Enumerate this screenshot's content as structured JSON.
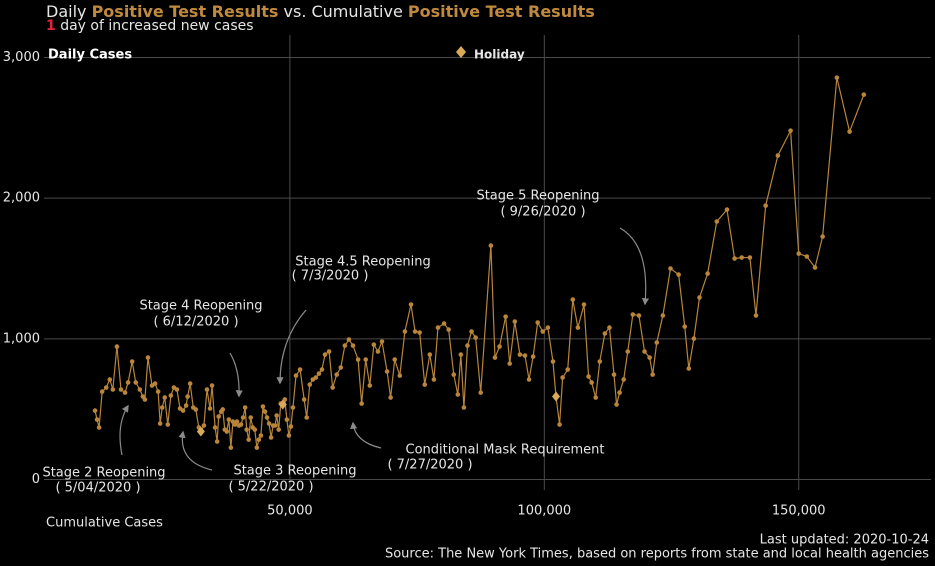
{
  "chart_data": {
    "type": "line",
    "title_parts": [
      "Daily",
      "Positive Test Results",
      "vs. Cumulative",
      "Positive Test Results"
    ],
    "subtitle": {
      "count": 1,
      "text": "day of increased new cases"
    },
    "y_label": "Daily Cases",
    "x_label": "Cumulative Cases",
    "xlim": [
      0,
      176000
    ],
    "ylim": [
      -110,
      3160
    ],
    "xticks": [
      {
        "value": 50000,
        "label": "50,000"
      },
      {
        "value": 100000,
        "label": "100,000"
      },
      {
        "value": 150000,
        "label": "150,000"
      }
    ],
    "yticks": [
      0,
      {
        "value": 1000,
        "label": "1,000"
      },
      {
        "value": 2000,
        "label": "2,000"
      },
      {
        "value": 3000,
        "label": "3,000"
      }
    ],
    "grid": true,
    "series": [
      {
        "color": "#b8853a",
        "x": [
          11700,
          12100,
          12500,
          13100,
          13900,
          14600,
          15200,
          16000,
          16800,
          17600,
          18200,
          19000,
          19700,
          20500,
          21100,
          21500,
          22100,
          22900,
          23500,
          24100,
          24500,
          24900,
          25400,
          26000,
          26600,
          27200,
          27800,
          28400,
          29000,
          29600,
          29900,
          30400,
          31000,
          31500,
          32100,
          32500,
          33100,
          33700,
          34300,
          34700,
          35300,
          35700,
          36000,
          36500,
          36800,
          37200,
          37600,
          38000,
          38400,
          38800,
          39200,
          39600,
          40000,
          40400,
          40800,
          41200,
          41500,
          41900,
          42300,
          42700,
          43100,
          43500,
          43900,
          44300,
          44700,
          45100,
          45500,
          45900,
          46300,
          46700,
          47100,
          47400,
          47800,
          48200,
          48600,
          49000,
          49400,
          49800,
          50200,
          50600,
          51200,
          52000,
          52800,
          53300,
          53900,
          54500,
          55100,
          55700,
          56300,
          56900,
          57700,
          58400,
          59200,
          60000,
          60800,
          61600,
          62400,
          63400,
          64100,
          64900,
          65700,
          66500,
          67300,
          68100,
          69100,
          69800,
          70600,
          71600,
          72600,
          73800,
          74600,
          75500,
          76500,
          77500,
          78300,
          79100,
          80300,
          81200,
          82200,
          83000,
          83600,
          84200,
          84900,
          85700,
          86500,
          87500,
          89500,
          90300,
          91200,
          92400,
          93200,
          94200,
          95200,
          96200,
          97000,
          97800,
          98700,
          99700,
          100700,
          101700,
          102300,
          103000,
          103600,
          104600,
          105600,
          106600,
          107800,
          108700,
          109300,
          110100,
          110900,
          111900,
          112800,
          113700,
          114200,
          114800,
          115600,
          116400,
          117400,
          118600,
          119700,
          120700,
          121300,
          122100,
          123300,
          124800,
          126400,
          127600,
          128400,
          129400,
          130500,
          132100,
          133900,
          135900,
          137400,
          138800,
          140400,
          141600,
          143500,
          145900,
          148400,
          150000,
          151600,
          153200,
          154700,
          157500,
          160000,
          162800
        ],
        "values": [
          490,
          426,
          370,
          625,
          654,
          711,
          640,
          945,
          640,
          618,
          690,
          839,
          690,
          640,
          590,
          569,
          867,
          668,
          682,
          625,
          398,
          512,
          583,
          391,
          597,
          654,
          640,
          505,
          490,
          526,
          590,
          682,
          512,
          498,
          370,
          341,
          384,
          640,
          505,
          668,
          370,
          270,
          448,
          483,
          498,
          355,
          341,
          426,
          227,
          412,
          391,
          412,
          384,
          391,
          441,
          512,
          355,
          284,
          441,
          370,
          355,
          227,
          284,
          313,
          519,
          483,
          441,
          398,
          299,
          384,
          384,
          455,
          355,
          540,
          533,
          569,
          426,
          313,
          377,
          512,
          739,
          782,
          569,
          441,
          675,
          711,
          725,
          753,
          782,
          888,
          910,
          654,
          746,
          796,
          952,
          995,
          952,
          853,
          540,
          853,
          668,
          959,
          910,
          981,
          768,
          583,
          853,
          739,
          1052,
          1244,
          1052,
          1045,
          675,
          888,
          711,
          1080,
          1109,
          1066,
          746,
          604,
          888,
          512,
          952,
          1052,
          1009,
          618,
          1663,
          867,
          945,
          1158,
          824,
          1123,
          888,
          881,
          711,
          874,
          1116,
          1052,
          1080,
          839,
          590,
          391,
          725,
          782,
          1279,
          1080,
          1244,
          732,
          690,
          583,
          839,
          1038,
          1080,
          746,
          533,
          618,
          711,
          910,
          1173,
          1166,
          910,
          867,
          746,
          974,
          1166,
          1500,
          1457,
          1087,
          789,
          1002,
          1294,
          1464,
          1834,
          1919,
          1571,
          1578,
          1578,
          1166,
          1947,
          2303,
          2480,
          1606,
          1585,
          1507,
          1727,
          2857,
          2473,
          2736
        ]
      }
    ],
    "holidays": {
      "name": "Holiday",
      "color": "#d9a95a",
      "x": [
        32500,
        48600,
        102300
      ],
      "values": [
        341,
        533,
        590
      ]
    },
    "annotations": [
      {
        "label": "Stage 2 Reopening",
        "date": "( 5/04/2020 )"
      },
      {
        "label": "Stage 3 Reopening",
        "date": "( 5/22/2020 )"
      },
      {
        "label": "Stage 4 Reopening",
        "date": "( 6/12/2020 )"
      },
      {
        "label": "Stage 4.5 Reopening",
        "date": "( 7/3/2020 )"
      },
      {
        "label": "Conditional Mask Requirement",
        "date": "( 7/27/2020 )"
      },
      {
        "label": "Stage 5 Reopening",
        "date": "( 9/26/2020 )"
      }
    ],
    "last_updated": "Last updated: 2020-10-24",
    "source": "Source: The New York Times, based on reports from state and local health agencies"
  }
}
